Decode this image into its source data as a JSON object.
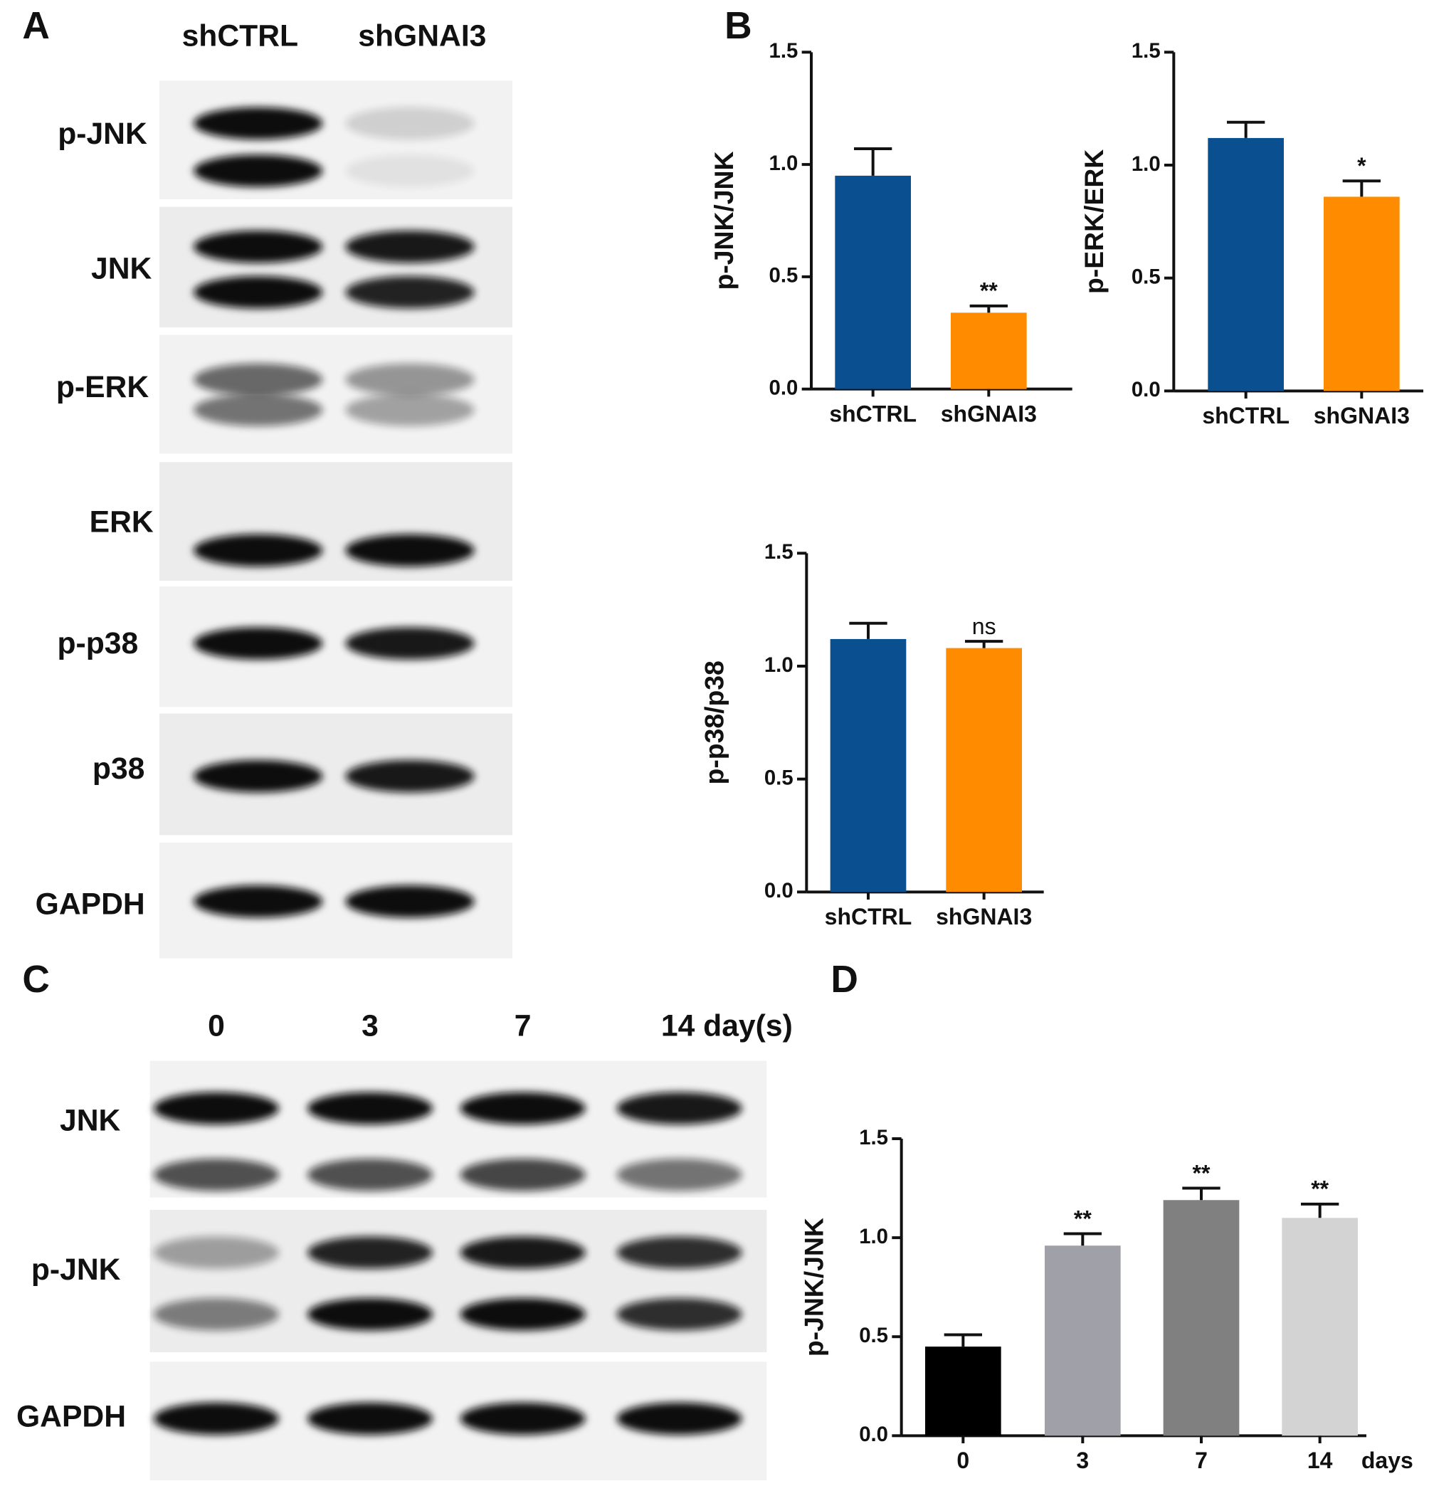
{
  "panel_labels": [
    "A",
    "B",
    "C",
    "D"
  ],
  "blot_A": {
    "lanes": [
      "shCTRL",
      "shGNAI3"
    ],
    "rows": [
      "p-JNK",
      "JNK",
      "p-ERK",
      "ERK",
      "p-p38",
      "p38",
      "GAPDH"
    ]
  },
  "blot_C": {
    "lanes": [
      "0",
      "3",
      "7",
      "14 day(s)"
    ],
    "rows": [
      "JNK",
      "p-JNK",
      "GAPDH"
    ]
  },
  "chart_data": [
    {
      "type": "bar",
      "y_label": "p-JNK/JNK",
      "categories": [
        "shCTRL",
        "shGNAI3"
      ],
      "values": [
        0.95,
        0.34
      ],
      "errors": [
        0.12,
        0.03
      ],
      "colors": [
        "#0a4f8f",
        "#ff8c00"
      ],
      "annotations": [
        null,
        "**"
      ],
      "ylim": [
        0,
        1.5
      ],
      "yticks": [
        {
          "value": 0,
          "label": "0.0"
        },
        0.5,
        {
          "value": 1,
          "label": "1.0"
        },
        1.5
      ]
    },
    {
      "type": "bar",
      "y_label": "p-ERK/ERK",
      "categories": [
        "shCTRL",
        "shGNAI3"
      ],
      "values": [
        1.12,
        0.86
      ],
      "errors": [
        0.07,
        0.07
      ],
      "colors": [
        "#0a4f8f",
        "#ff8c00"
      ],
      "annotations": [
        null,
        "*"
      ],
      "ylim": [
        0,
        1.5
      ],
      "yticks": [
        {
          "value": 0,
          "label": "0.0"
        },
        0.5,
        {
          "value": 1,
          "label": "1.0"
        },
        1.5
      ]
    },
    {
      "type": "bar",
      "y_label": "p-p38/p38",
      "categories": [
        "shCTRL",
        "shGNAI3"
      ],
      "values": [
        1.12,
        1.08
      ],
      "errors": [
        0.07,
        0.03
      ],
      "colors": [
        "#0a4f8f",
        "#ff8c00"
      ],
      "annotations": [
        null,
        "ns"
      ],
      "ylim": [
        0,
        1.5
      ],
      "yticks": [
        {
          "value": 0,
          "label": "0.0"
        },
        0.5,
        {
          "value": 1,
          "label": "1.0"
        },
        1.5
      ]
    },
    {
      "type": "bar",
      "y_label": "p-JNK/JNK",
      "x_label": "days",
      "categories": [
        "0",
        "3",
        "7",
        "14"
      ],
      "values": [
        0.45,
        0.96,
        1.19,
        1.1
      ],
      "errors": [
        0.06,
        0.06,
        0.06,
        0.07
      ],
      "colors": [
        "#000000",
        "#a0a0a8",
        "#808080",
        "#d3d3d3"
      ],
      "annotations": [
        null,
        "**",
        "**",
        "**"
      ],
      "ylim": [
        0,
        1.5
      ],
      "yticks": [
        {
          "value": 0,
          "label": "0.0"
        },
        0.5,
        {
          "value": 1,
          "label": "1.0"
        },
        1.5
      ]
    }
  ]
}
